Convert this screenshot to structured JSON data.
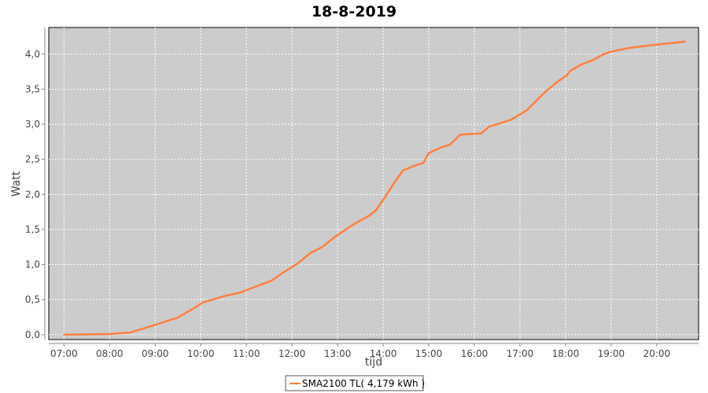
{
  "chart_data": {
    "type": "line",
    "title": "18-8-2019",
    "xlabel": "tijd",
    "ylabel": "Watt",
    "xlim": [
      "06:40",
      "20:55"
    ],
    "ylim": [
      -0.07,
      4.38
    ],
    "grid": true,
    "legend_position": "bottom",
    "x_ticks": [
      "07:00",
      "08:00",
      "09:00",
      "10:00",
      "11:00",
      "12:00",
      "13:00",
      "14:00",
      "15:00",
      "16:00",
      "17:00",
      "18:00",
      "19:00",
      "20:00"
    ],
    "y_ticks": [
      0.0,
      0.5,
      1.0,
      1.5,
      2.0,
      2.5,
      3.0,
      3.5,
      4.0
    ],
    "y_tick_labels": [
      "0,0",
      "0,5",
      "1,0",
      "1,5",
      "2,0",
      "2,5",
      "3,0",
      "3,5",
      "4,0"
    ],
    "colors": {
      "plot_bg": "#cccccc",
      "series": "#ff7f3f"
    },
    "series": [
      {
        "name": "SMA2100 TL( 4,179 kWh )",
        "x": [
          "06:59",
          "08:01",
          "08:27",
          "09:00",
          "09:29",
          "09:50",
          "10:03",
          "10:31",
          "10:52",
          "11:18",
          "11:33",
          "11:49",
          "12:07",
          "12:25",
          "12:40",
          "12:56",
          "13:22",
          "13:42",
          "13:51",
          "14:03",
          "14:13",
          "14:26",
          "14:39",
          "14:53",
          "15:00",
          "15:16",
          "15:28",
          "15:41",
          "15:52",
          "16:09",
          "16:20",
          "16:33",
          "16:49",
          "17:09",
          "17:20",
          "17:35",
          "17:51",
          "18:01",
          "18:06",
          "18:20",
          "18:37",
          "18:48",
          "18:58",
          "19:24",
          "19:55",
          "20:38"
        ],
        "y": [
          0.0,
          0.01,
          0.03,
          0.14,
          0.24,
          0.37,
          0.46,
          0.55,
          0.6,
          0.71,
          0.77,
          0.89,
          1.01,
          1.17,
          1.25,
          1.39,
          1.58,
          1.7,
          1.78,
          1.97,
          2.14,
          2.34,
          2.4,
          2.45,
          2.59,
          2.67,
          2.71,
          2.85,
          2.86,
          2.87,
          2.97,
          3.01,
          3.07,
          3.2,
          3.32,
          3.48,
          3.62,
          3.69,
          3.76,
          3.85,
          3.92,
          3.99,
          4.03,
          4.09,
          4.13,
          4.179
        ]
      }
    ]
  }
}
